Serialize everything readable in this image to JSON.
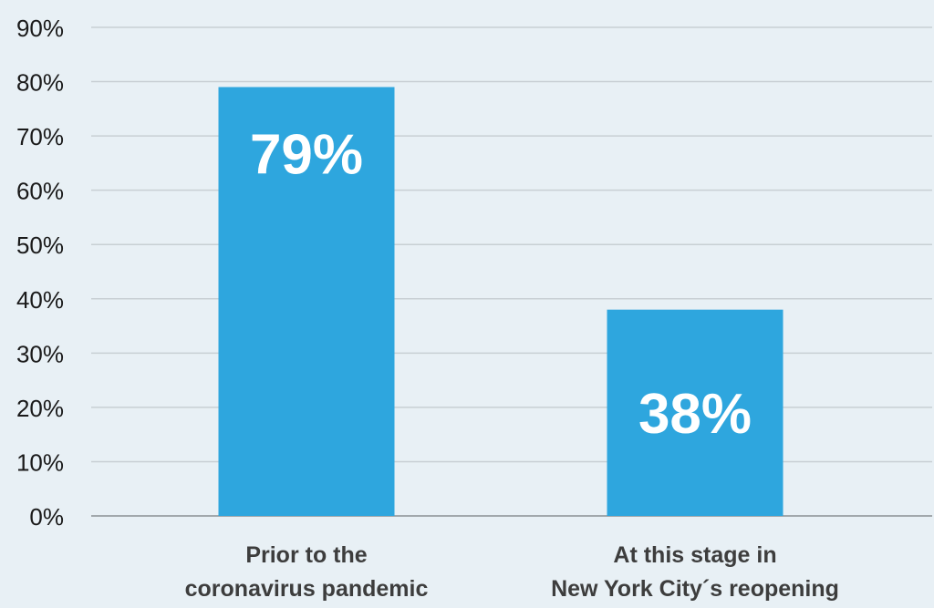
{
  "colors": {
    "background": "#e8f0f5",
    "bar": "#2ea6de",
    "gridline": "#c8cfd4",
    "baseline": "#8a8f93",
    "data_label": "#ffffff",
    "tick_text": "#1a1a1a",
    "category_text": "#3d3d3d"
  },
  "chart_data": {
    "type": "bar",
    "title": "",
    "xlabel": "",
    "ylabel": "",
    "categories": [
      [
        "Prior to the",
        "coronavirus pandemic"
      ],
      [
        "At this stage in",
        "New York City´s reopening"
      ]
    ],
    "values": [
      79,
      38
    ],
    "data_labels": [
      "79%",
      "38%"
    ],
    "ylim": [
      0,
      90
    ],
    "yticks": [
      0,
      10,
      20,
      30,
      40,
      50,
      60,
      70,
      80,
      90
    ],
    "ytick_labels": [
      "0%",
      "10%",
      "20%",
      "30%",
      "40%",
      "50%",
      "60%",
      "70%",
      "80%",
      "90%"
    ],
    "grid": true,
    "legend": "none"
  }
}
